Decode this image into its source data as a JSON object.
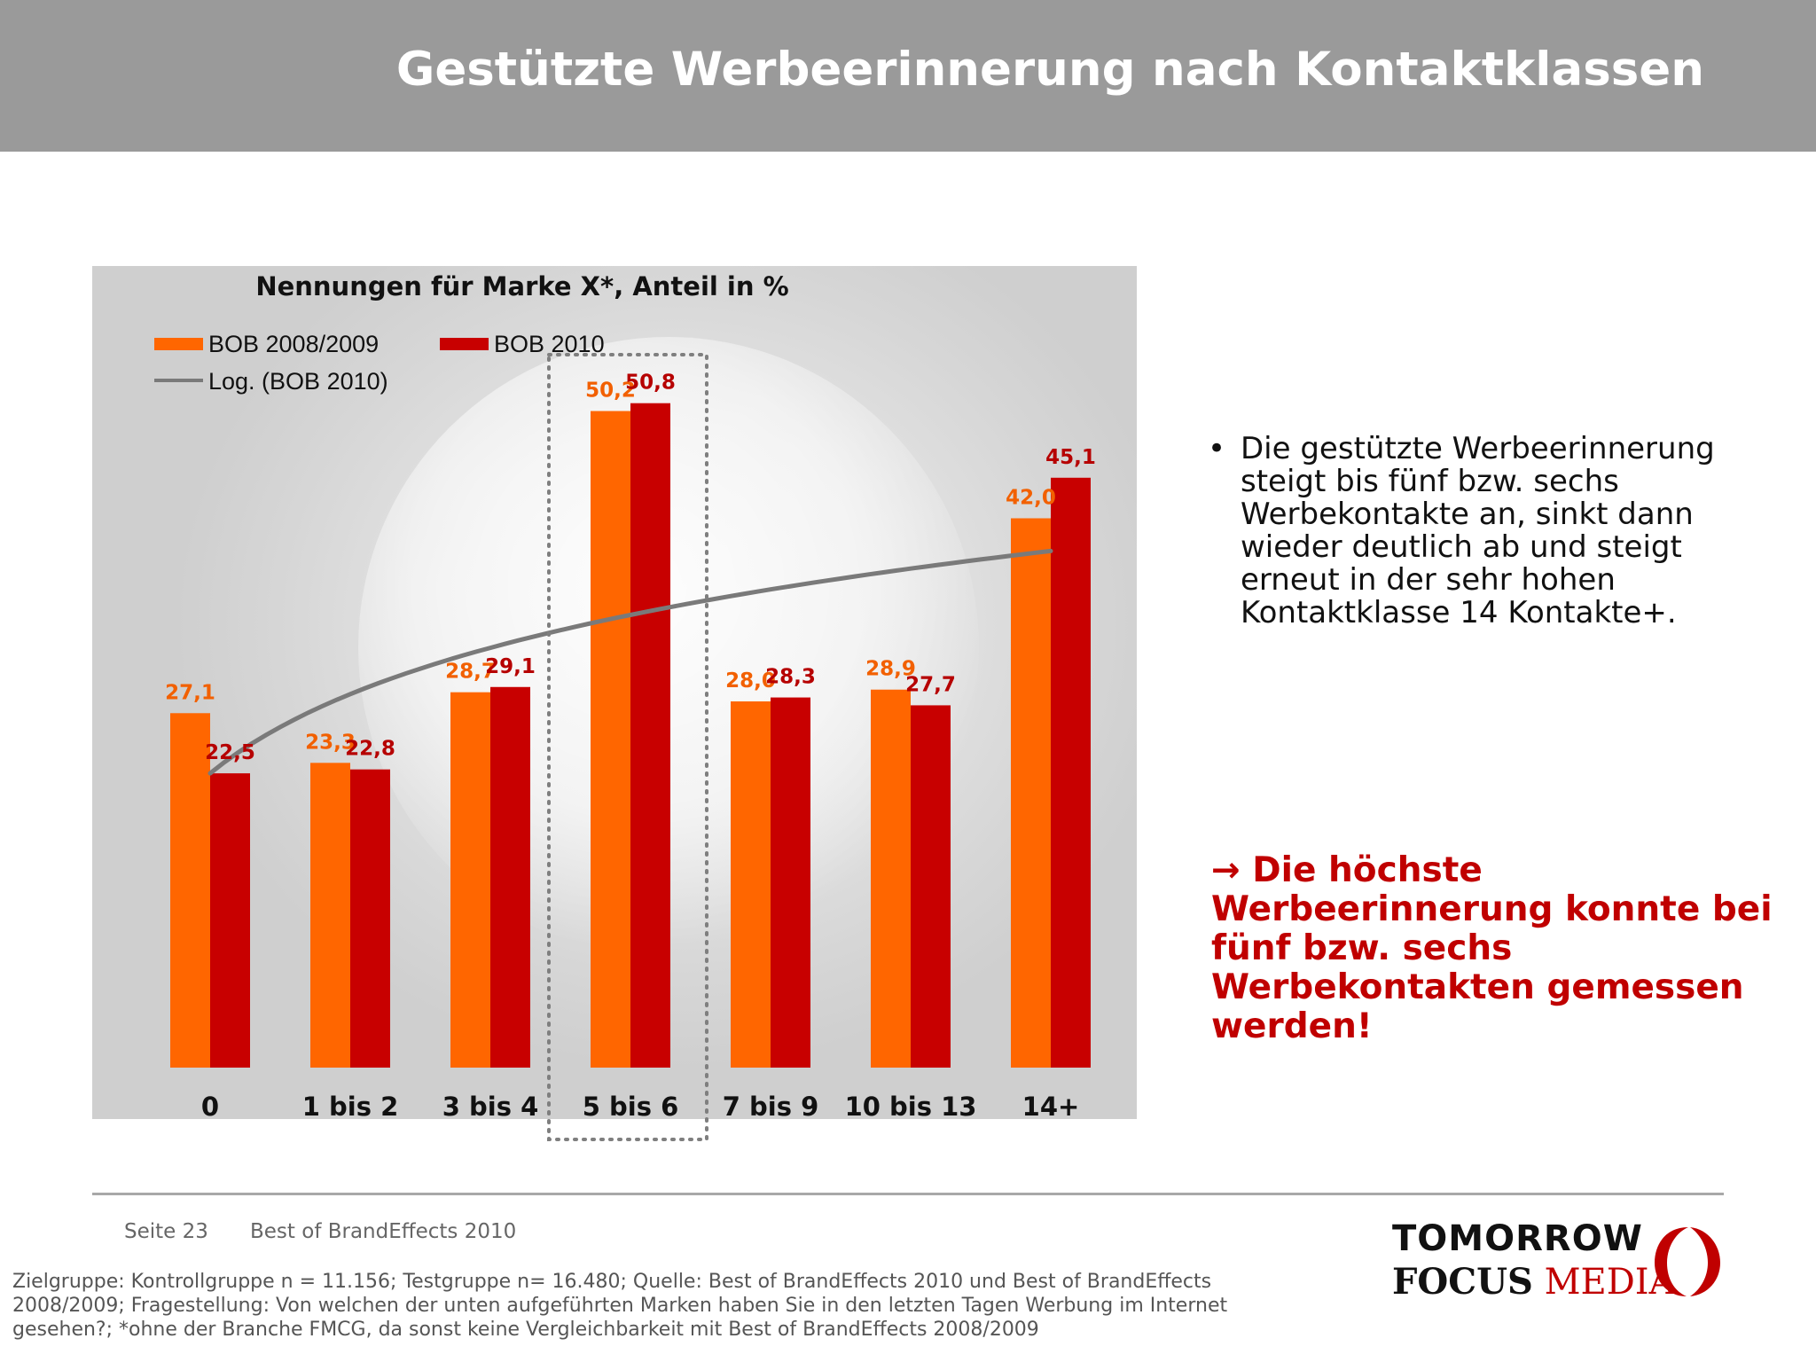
{
  "slide": {
    "title": "Gestützte Werbeerinnerung nach Kontaktklassen"
  },
  "colors": {
    "title_bar": "#9a9a9a",
    "series_a": "#ff6600",
    "series_b": "#c80000",
    "trend": "#7a7a7a",
    "label_a": "#f26000",
    "label_b": "#b60000",
    "conclusion": "#c00000"
  },
  "chart_data": {
    "type": "bar",
    "title": "Nennungen für Marke X*, Anteil in %",
    "categories": [
      "0",
      "1 bis 2",
      "3 bis 4",
      "5 bis 6",
      "7 bis 9",
      "10 bis 13",
      "14+"
    ],
    "series": [
      {
        "name": "BOB 2008/2009",
        "values": [
          27.1,
          23.3,
          28.7,
          50.2,
          28.0,
          28.9,
          42.0
        ],
        "labels": [
          "27,1",
          "23,3",
          "28,7",
          "50,2",
          "28,0",
          "28,9",
          "42,0"
        ]
      },
      {
        "name": "BOB 2010",
        "values": [
          22.5,
          22.8,
          29.1,
          50.8,
          28.3,
          27.7,
          45.1
        ],
        "labels": [
          "22,5",
          "22,8",
          "29,1",
          "50,8",
          "28,3",
          "27,7",
          "45,1"
        ]
      }
    ],
    "trendline": {
      "name": "Log. (BOB 2010)",
      "type": "logarithmic",
      "start": 22.5,
      "end": 39.5
    },
    "highlight_category": "5 bis 6",
    "ylim": [
      0,
      55
    ],
    "xlabel": "",
    "ylabel": "",
    "legend": "top-left",
    "grid": false
  },
  "bullet": {
    "text": "Die gestützte Werbeerinnerung steigt bis fünf bzw. sechs Werbekontakte an, sinkt dann wieder deutlich ab und steigt erneut in der sehr hohen Kontaktklasse 14 Kontakte+."
  },
  "conclusion": {
    "arrow": "→",
    "text": "Die höchste Werbeerinnerung konnte bei fünf bzw. sechs Werbekontakten gemessen werden!"
  },
  "footer": {
    "page": "Seite 23",
    "title": "Best of BrandEffects 2010",
    "note": "Zielgruppe: Kontrollgruppe n = 11.156; Testgruppe n= 16.480; Quelle: Best of BrandEffects 2010 und Best of BrandEffects 2008/2009; Fragestellung: Von welchen der unten aufgeführten Marken haben Sie in den letzten Tagen Werbung im Internet gesehen?; *ohne der Branche FMCG, da sonst keine Vergleichbarkeit mit Best of BrandEffects 2008/2009"
  },
  "logo": {
    "line1": "TOMORROW",
    "focus": "FOCUS",
    "media": "MEDIA"
  }
}
